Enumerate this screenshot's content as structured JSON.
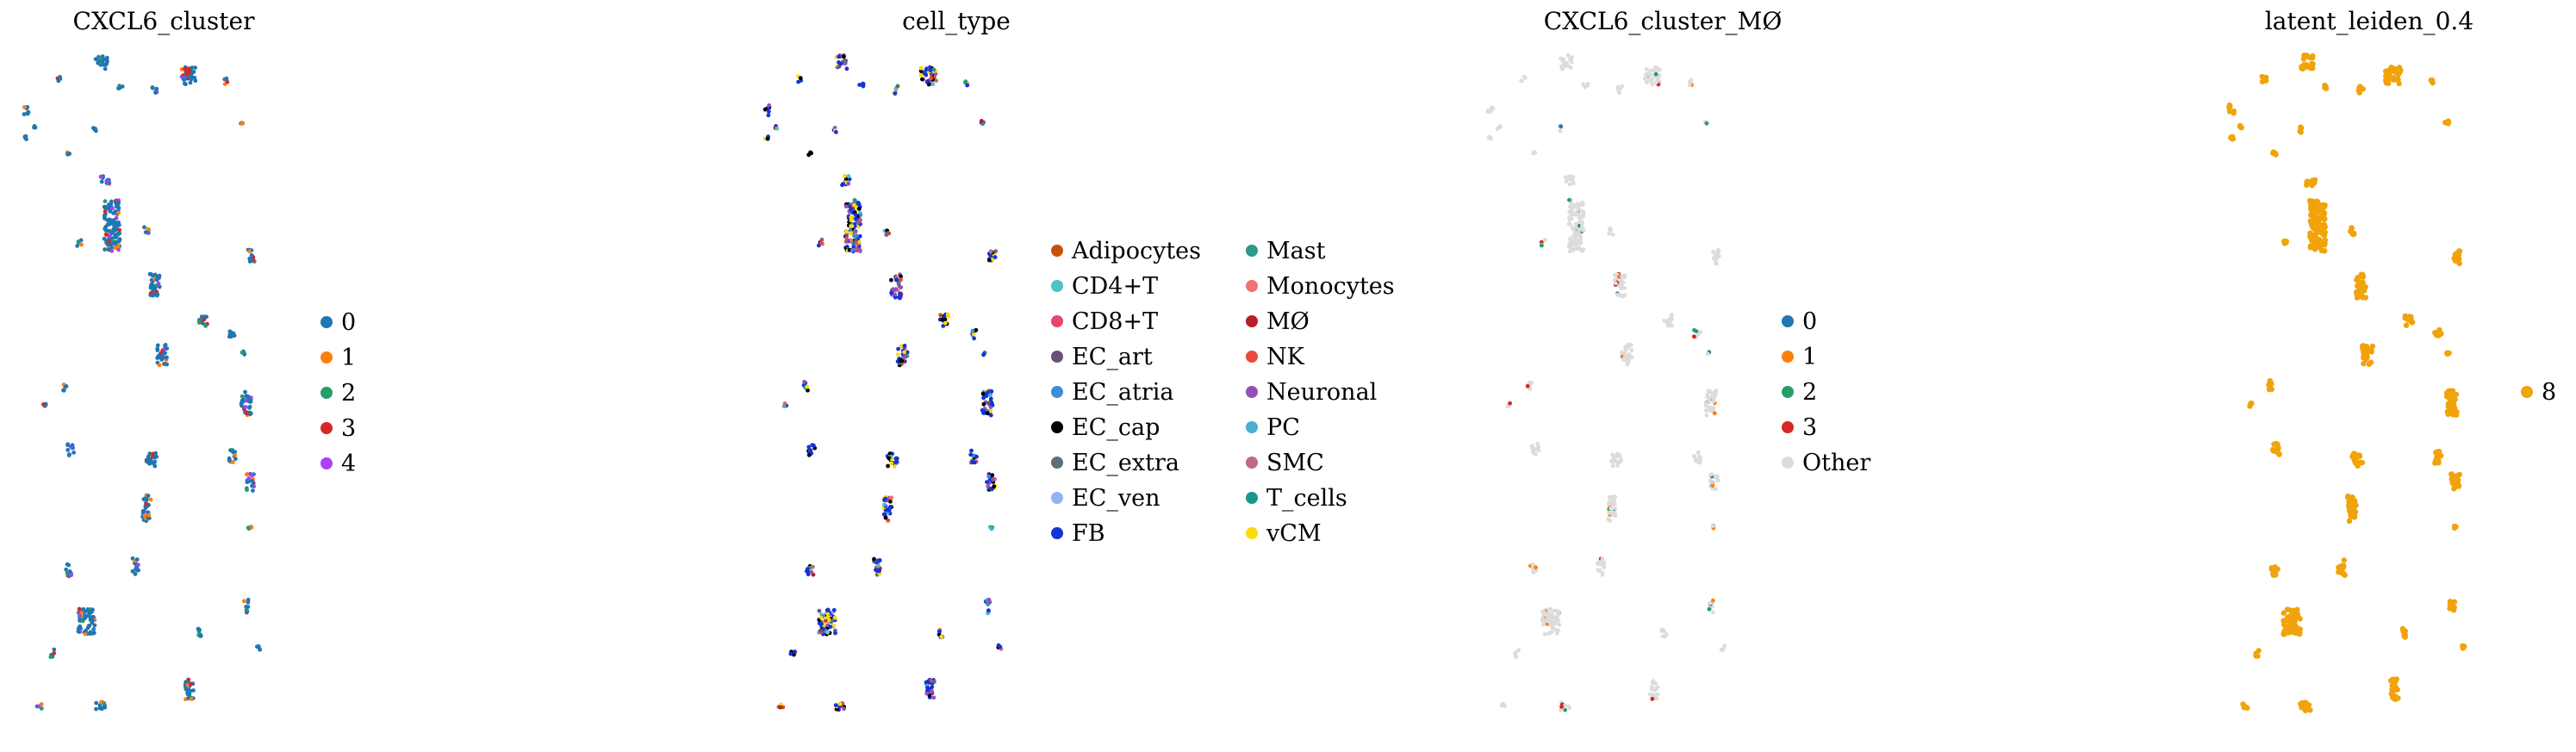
{
  "chart_data": [
    {
      "type": "scatter",
      "title": "CXCL6_cluster",
      "legend": [
        {
          "label": "0",
          "color": "#1f77b4"
        },
        {
          "label": "1",
          "color": "#ff7f0e"
        },
        {
          "label": "2",
          "color": "#279e68"
        },
        {
          "label": "3",
          "color": "#d62728"
        },
        {
          "label": "4",
          "color": "#aa40fc"
        }
      ],
      "legend_placement": "right",
      "grid": false,
      "axes": false
    },
    {
      "type": "scatter",
      "title": "cell_type",
      "legend": [
        {
          "label": "Adipocytes",
          "color": "#c6520a"
        },
        {
          "label": "CD4+T",
          "color": "#4bc4c4"
        },
        {
          "label": "CD8+T",
          "color": "#e8466a"
        },
        {
          "label": "EC_art",
          "color": "#6a4f7a"
        },
        {
          "label": "EC_atria",
          "color": "#3a8fd6"
        },
        {
          "label": "EC_cap",
          "color": "#000000"
        },
        {
          "label": "EC_extra",
          "color": "#5c6e78"
        },
        {
          "label": "EC_ven",
          "color": "#8fb4f4"
        },
        {
          "label": "FB",
          "color": "#1434d8"
        },
        {
          "label": "Mast",
          "color": "#2a9a8c"
        },
        {
          "label": "Monocytes",
          "color": "#f47070"
        },
        {
          "label": "MØ",
          "color": "#b81e28"
        },
        {
          "label": "NK",
          "color": "#e84a3e"
        },
        {
          "label": "Neuronal",
          "color": "#9450b8"
        },
        {
          "label": "PC",
          "color": "#4ab0d0"
        },
        {
          "label": "SMC",
          "color": "#c06a80"
        },
        {
          "label": "T_cells",
          "color": "#17998a"
        },
        {
          "label": "vCM",
          "color": "#f8dc10"
        }
      ],
      "legend_placement": "right",
      "grid": false,
      "axes": false
    },
    {
      "type": "scatter",
      "title": "CXCL6_cluster_MØ",
      "legend": [
        {
          "label": "0",
          "color": "#1f77b4"
        },
        {
          "label": "1",
          "color": "#ff7f0e"
        },
        {
          "label": "2",
          "color": "#279e68"
        },
        {
          "label": "3",
          "color": "#d62728"
        },
        {
          "label": "Other",
          "color": "#dcdcdc"
        }
      ],
      "legend_placement": "right",
      "grid": false,
      "axes": false
    },
    {
      "type": "scatter",
      "title": "latent_leiden_0.4",
      "legend": [
        {
          "label": "8",
          "color": "#f0a30a"
        }
      ],
      "legend_placement": "right",
      "grid": false,
      "axes": false
    }
  ]
}
